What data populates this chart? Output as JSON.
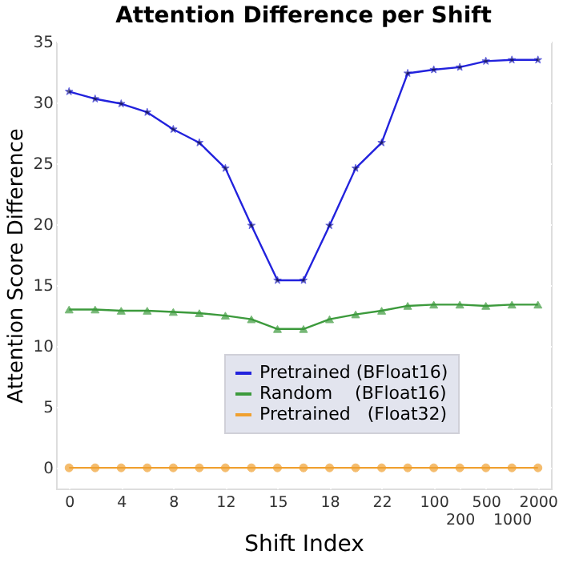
{
  "chart_data": {
    "type": "line",
    "title": "Attention Difference per Shift",
    "xlabel": "Shift Index",
    "ylabel": "Attention Score Difference",
    "categories": [
      "0",
      null,
      "4",
      null,
      "8",
      null,
      "12",
      null,
      "15",
      null,
      "18",
      null,
      "22",
      null,
      "100",
      "200",
      "500",
      "1000",
      "2000"
    ],
    "series": [
      {
        "name": "Pretrained (BFloat16)",
        "color": "#2222dd",
        "marker": "star",
        "values": [
          30.9,
          30.3,
          29.9,
          29.2,
          27.8,
          26.7,
          24.6,
          19.9,
          15.4,
          15.4,
          19.9,
          24.6,
          26.7,
          32.4,
          32.7,
          32.9,
          33.4,
          33.5,
          33.5
        ]
      },
      {
        "name": "Random    (BFloat16)",
        "color": "#3c9a3c",
        "marker": "triangle",
        "values": [
          13.0,
          13.0,
          12.9,
          12.9,
          12.8,
          12.7,
          12.5,
          12.2,
          11.4,
          11.4,
          12.2,
          12.6,
          12.9,
          13.3,
          13.4,
          13.4,
          13.3,
          13.4,
          13.4
        ]
      },
      {
        "name": "Pretrained   (Float32)",
        "color": "#f0a030",
        "marker": "circle",
        "values": [
          0,
          0,
          0,
          0,
          0,
          0,
          0,
          0,
          0,
          0,
          0,
          0,
          0,
          0,
          0,
          0,
          0,
          0,
          0
        ]
      }
    ],
    "ylim": [
      -1.7,
      35
    ],
    "yticks": [
      0,
      5,
      10,
      15,
      20,
      25,
      30,
      35
    ],
    "grid": true,
    "legend": "bottom right"
  }
}
